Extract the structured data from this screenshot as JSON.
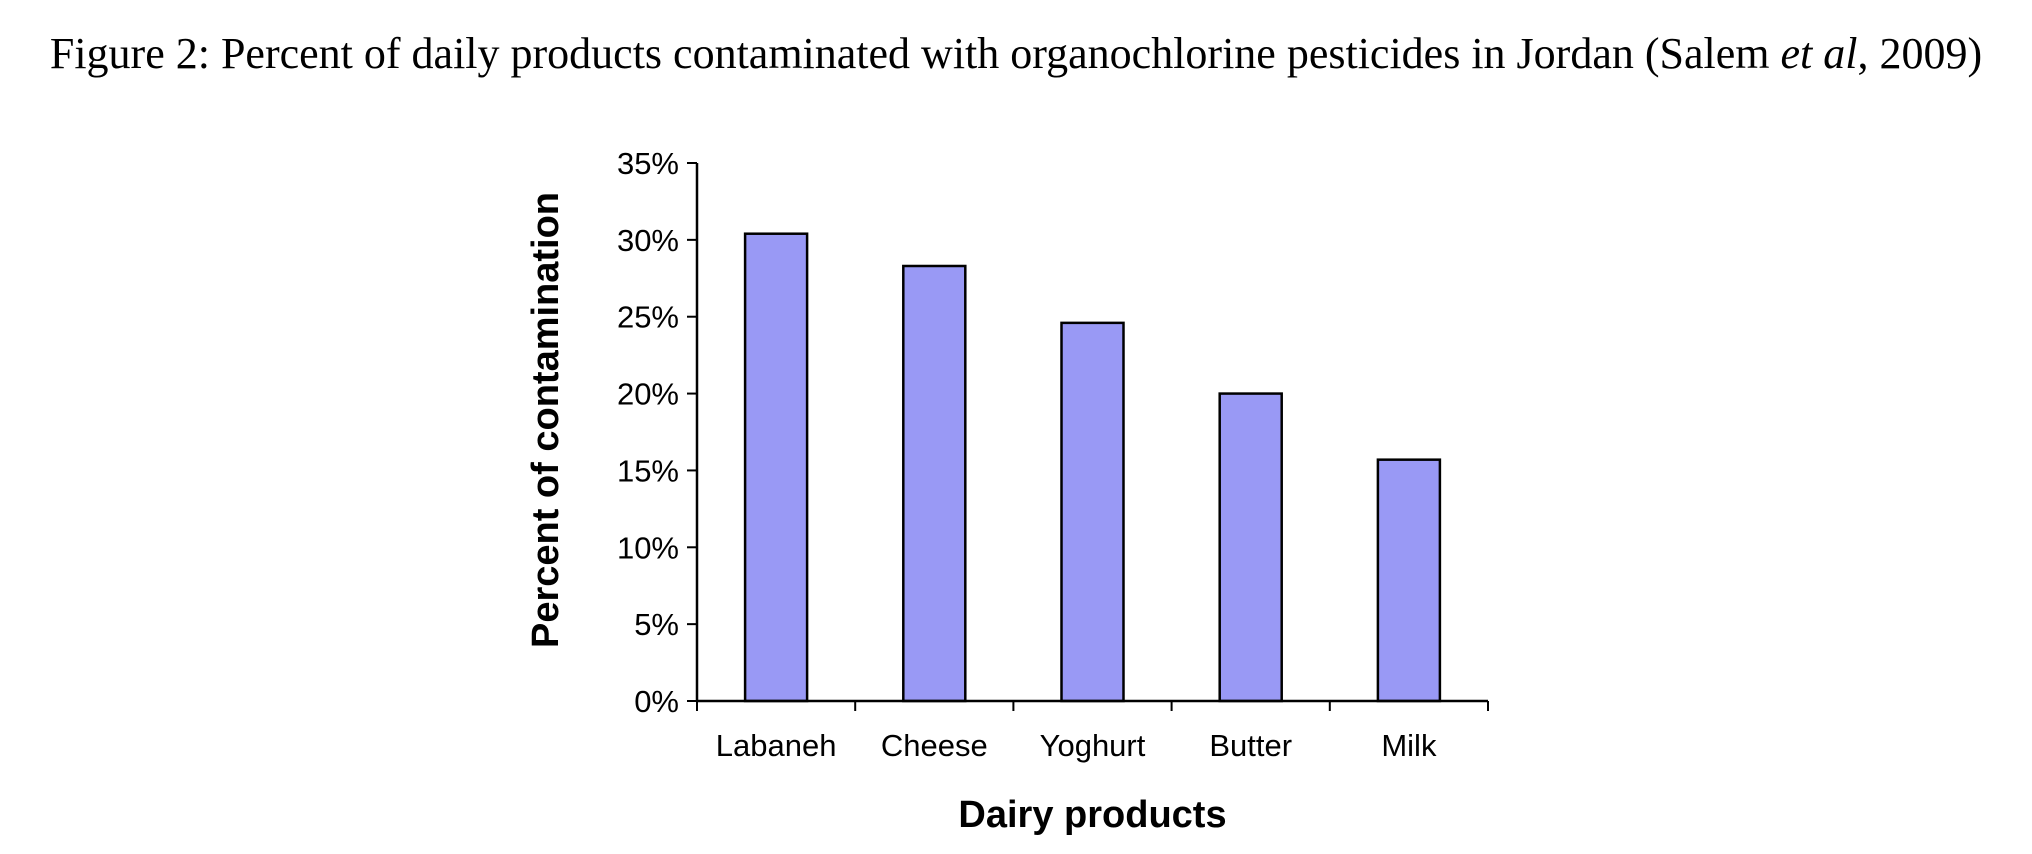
{
  "caption": {
    "prefix": "Figure 2: Percent of daily products contaminated with organochlorine pesticides in Jordan (Salem ",
    "italic": "et al",
    "suffix": ", 2009)"
  },
  "colors": {
    "bar_fill": "#9999f5",
    "bar_stroke": "#000000",
    "axis": "#000000"
  },
  "chart_data": {
    "type": "bar",
    "categories": [
      "Labaneh",
      "Cheese",
      "Yoghurt",
      "Butter",
      "Milk"
    ],
    "values": [
      30.4,
      28.3,
      24.6,
      20.0,
      15.7
    ],
    "title": "",
    "xlabel": "Dairy products",
    "ylabel": "Percent of contamination",
    "ylim": [
      0,
      35
    ],
    "yticks": [
      0,
      5,
      10,
      15,
      20,
      25,
      30,
      35
    ],
    "ytick_labels": [
      "0%",
      "5%",
      "10%",
      "15%",
      "20%",
      "25%",
      "30%",
      "35%"
    ],
    "grid": false,
    "legend": "none"
  }
}
